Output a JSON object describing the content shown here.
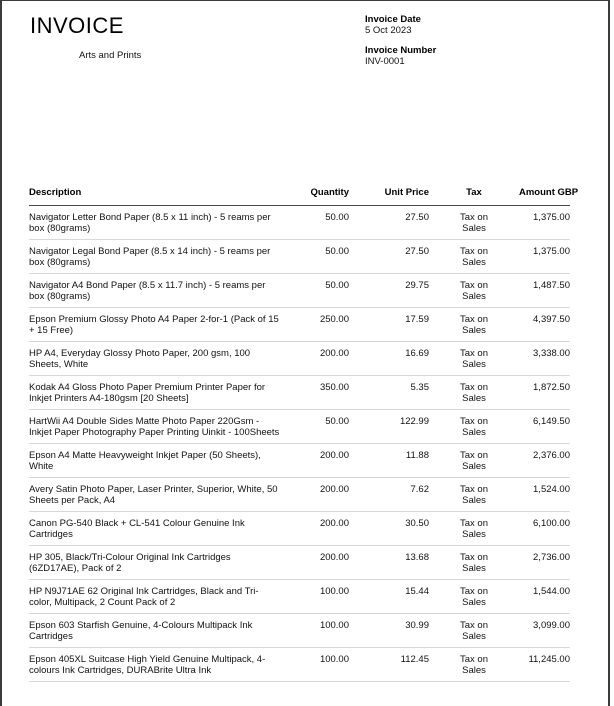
{
  "page": {
    "title": "INVOICE",
    "company": "Arts and Prints"
  },
  "meta": {
    "invoice_date_label": "Invoice Date",
    "invoice_date": "5 Oct 2023",
    "invoice_number_label": "Invoice Number",
    "invoice_number": "INV-0001"
  },
  "table": {
    "headers": [
      "Description",
      "Quantity",
      "Unit Price",
      "Tax",
      "Amount GBP"
    ],
    "rows": [
      {
        "description": "Navigator Letter Bond Paper (8.5 x 11 inch) - 5 reams per box (80grams)",
        "quantity": "50.00",
        "unit_price": "27.50",
        "tax": "Tax on\nSales",
        "amount": "1,375.00"
      },
      {
        "description": "Navigator Legal Bond Paper (8.5 x 14 inch) - 5 reams per box (80grams)",
        "quantity": "50.00",
        "unit_price": "27.50",
        "tax": "Tax on\nSales",
        "amount": "1,375.00"
      },
      {
        "description": "Navigator A4 Bond Paper (8.5 x 11.7 inch) - 5 reams per box (80grams)",
        "quantity": "50.00",
        "unit_price": "29.75",
        "tax": "Tax on\nSales",
        "amount": "1,487.50"
      },
      {
        "description": "Epson Premium Glossy Photo A4 Paper 2-for-1 (Pack of 15 + 15 Free)",
        "quantity": "250.00",
        "unit_price": "17.59",
        "tax": "Tax on\nSales",
        "amount": "4,397.50"
      },
      {
        "description": "HP A4, Everyday Glossy Photo Paper, 200 gsm, 100 Sheets, White",
        "quantity": "200.00",
        "unit_price": "16.69",
        "tax": "Tax on\nSales",
        "amount": "3,338.00"
      },
      {
        "description": "Kodak A4 Gloss Photo Paper Premium Printer Paper for Inkjet Printers A4-180gsm [20 Sheets]",
        "quantity": "350.00",
        "unit_price": "5.35",
        "tax": "Tax on\nSales",
        "amount": "1,872.50"
      },
      {
        "description": "HartWii A4 Double Sides Matte Photo Paper 220Gsm - Inkjet Paper Photography Paper Printing Uinkit - 100Sheets",
        "quantity": "50.00",
        "unit_price": "122.99",
        "tax": "Tax on\nSales",
        "amount": "6,149.50"
      },
      {
        "description": "Epson A4 Matte Heavyweight Inkjet Paper (50 Sheets), White",
        "quantity": "200.00",
        "unit_price": "11.88",
        "tax": "Tax on\nSales",
        "amount": "2,376.00"
      },
      {
        "description": "Avery Satin Photo Paper, Laser Printer, Superior, White, 50 Sheets per Pack, A4",
        "quantity": "200.00",
        "unit_price": "7.62",
        "tax": "Tax on\nSales",
        "amount": "1,524.00"
      },
      {
        "description": "Canon PG-540 Black + CL-541 Colour Genuine Ink Cartridges",
        "quantity": "200.00",
        "unit_price": "30.50",
        "tax": "Tax on\nSales",
        "amount": "6,100.00"
      },
      {
        "description": "HP 305, Black/Tri-Colour Original Ink Cartridges (6ZD17AE), Pack of 2",
        "quantity": "200.00",
        "unit_price": "13.68",
        "tax": "Tax on\nSales",
        "amount": "2,736.00"
      },
      {
        "description": "HP N9J71AE 62 Original Ink Cartridges, Black and Tri-color, Multipack, 2 Count Pack of 2",
        "quantity": "100.00",
        "unit_price": "15.44",
        "tax": "Tax on\nSales",
        "amount": "1,544.00"
      },
      {
        "description": "Epson 603 Starfish Genuine, 4-Colours Multipack Ink Cartridges",
        "quantity": "100.00",
        "unit_price": "30.99",
        "tax": "Tax on\nSales",
        "amount": "3,099.00"
      },
      {
        "description": "Epson 405XL Suitcase High Yield Genuine Multipack, 4-colours Ink Cartridges, DURABrite Ultra Ink",
        "quantity": "100.00",
        "unit_price": "112.45",
        "tax": "Tax on\nSales",
        "amount": "11,245.00"
      }
    ]
  },
  "colors": {
    "frame_border": "#3b3b3b",
    "header_rule": "#4a4a4a",
    "row_rule": "#d8d8d8",
    "text": "#000000"
  }
}
